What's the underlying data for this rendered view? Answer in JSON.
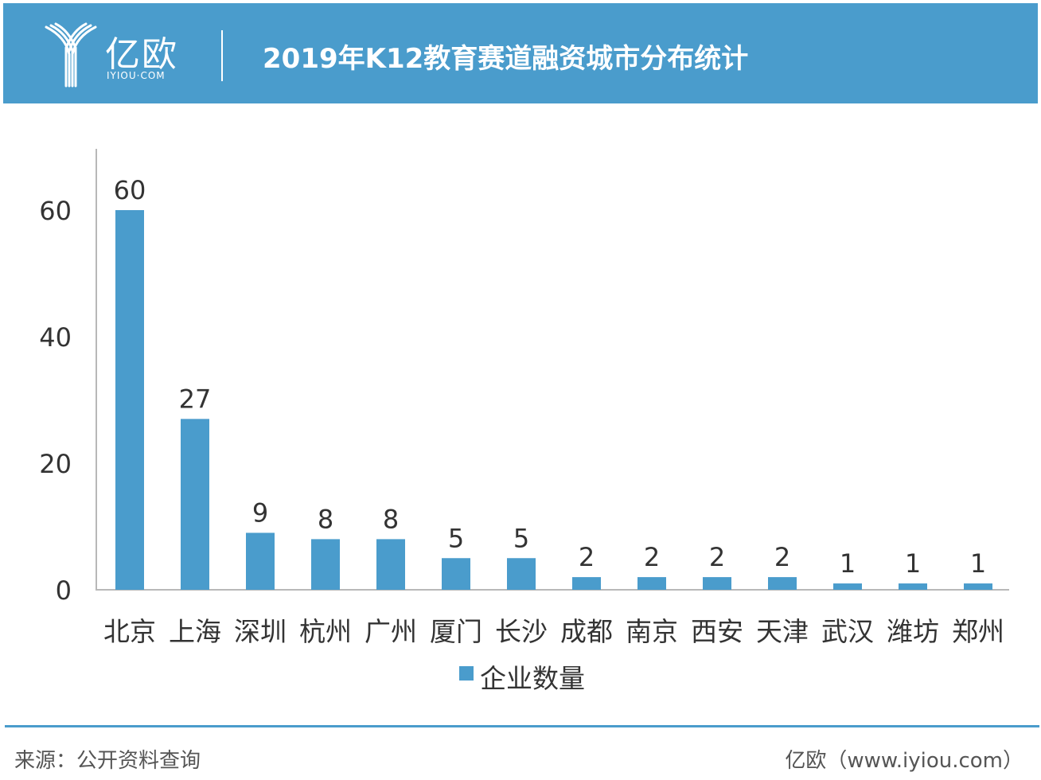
{
  "header": {
    "logo_name": "亿欧",
    "logo_sub": "IYIOU·COM",
    "title": "2019年K12教育赛道融资城市分布统计"
  },
  "chart_data": {
    "type": "bar",
    "categories": [
      "北京",
      "上海",
      "深圳",
      "杭州",
      "广州",
      "厦门",
      "长沙",
      "成都",
      "南京",
      "西安",
      "天津",
      "武汉",
      "潍坊",
      "郑州"
    ],
    "series": [
      {
        "name": "企业数量",
        "values": [
          60,
          27,
          9,
          8,
          8,
          5,
          5,
          2,
          2,
          2,
          2,
          1,
          1,
          1
        ],
        "color": "#4a9ccc"
      }
    ],
    "yticks": [
      0,
      20,
      40,
      60
    ],
    "ylim": [
      0,
      70
    ],
    "grid": false,
    "legend": "bottom-center"
  },
  "footer": {
    "source": "来源：公开资料查询",
    "site": "亿欧（www.iyiou.com）"
  }
}
